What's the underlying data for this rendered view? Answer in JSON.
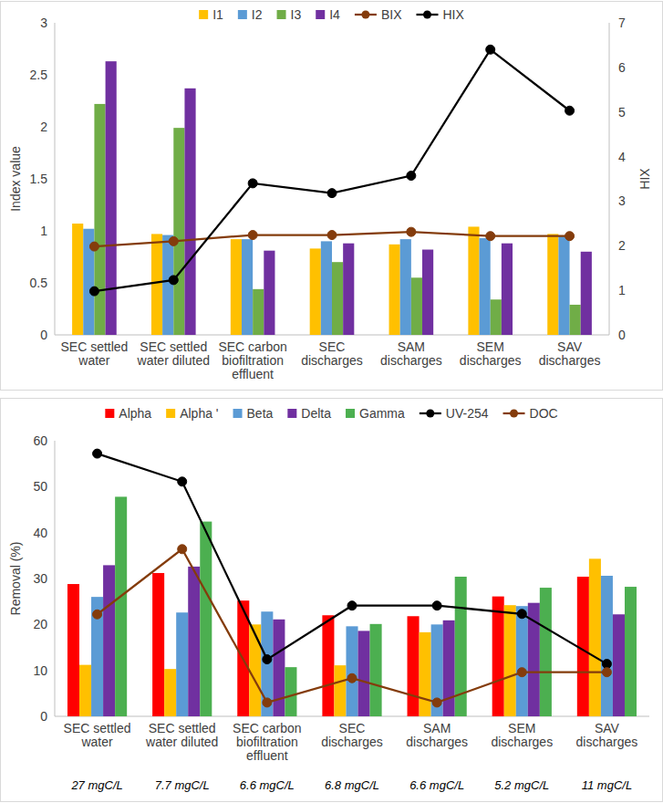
{
  "chart_data": [
    {
      "type": "bar",
      "ylabel": "Index value",
      "y2label": "HIX",
      "categories": [
        "SEC settled water",
        "SEC settled water diluted",
        "SEC carbon biofiltration effluent",
        "SEC discharges",
        "SAM discharges",
        "SEM discharges",
        "SAV discharges"
      ],
      "series": [
        {
          "name": "I1",
          "type": "bar",
          "color": "#ffc000",
          "values": [
            1.07,
            0.97,
            0.92,
            0.83,
            0.87,
            1.04,
            0.97
          ]
        },
        {
          "name": "I2",
          "type": "bar",
          "color": "#5b9bd5",
          "values": [
            1.02,
            0.96,
            0.92,
            0.9,
            0.92,
            0.93,
            0.95
          ]
        },
        {
          "name": "I3",
          "type": "bar",
          "color": "#70ad47",
          "values": [
            2.22,
            1.99,
            0.44,
            0.7,
            0.55,
            0.34,
            0.29
          ]
        },
        {
          "name": "I4",
          "type": "bar",
          "color": "#7030a0",
          "values": [
            2.63,
            2.37,
            0.81,
            0.88,
            0.82,
            0.88,
            0.8
          ]
        },
        {
          "name": "BIX",
          "type": "line",
          "color": "#843c0c",
          "marker": "circle",
          "values": [
            0.85,
            0.9,
            0.96,
            0.96,
            0.99,
            0.95,
            0.95
          ]
        },
        {
          "name": "HIX",
          "type": "line",
          "axis": "y2",
          "color": "#000000",
          "marker": "circle",
          "values": [
            0.98,
            1.23,
            3.4,
            3.18,
            3.57,
            6.4,
            5.03
          ]
        }
      ],
      "ylim": [
        0,
        3
      ],
      "yticks": [
        0,
        0.5,
        1,
        1.5,
        2,
        2.5,
        3
      ],
      "y2lim": [
        0,
        7
      ],
      "y2ticks": [
        0,
        1,
        2,
        3,
        4,
        5,
        6,
        7
      ],
      "grid": false,
      "legend": "top"
    },
    {
      "type": "bar",
      "ylabel": "Removal (%)",
      "categories": [
        "SEC settled water",
        "SEC settled water diluted",
        "SEC carbon biofiltration effluent",
        "SEC discharges",
        "SAM discharges",
        "SEM discharges",
        "SAV discharges"
      ],
      "annotations": [
        "27 mgC/L",
        "7.7 mgC/L",
        "6.6 mgC/L",
        "6.8 mgC/L",
        "6.6 mgC/L",
        "5.2 mgC/L",
        "11 mgC/L"
      ],
      "series": [
        {
          "name": "Alpha",
          "type": "bar",
          "color": "#ff0000",
          "values": [
            28.8,
            31.2,
            25.2,
            22.0,
            21.8,
            26.1,
            30.4
          ]
        },
        {
          "name": "Alpha '",
          "type": "bar",
          "color": "#ffc000",
          "values": [
            11.2,
            10.3,
            20.0,
            11.1,
            18.3,
            24.2,
            34.3
          ]
        },
        {
          "name": "Beta",
          "type": "bar",
          "color": "#5b9bd5",
          "values": [
            26.0,
            22.6,
            22.8,
            19.6,
            20.0,
            24.0,
            30.6
          ]
        },
        {
          "name": "Delta",
          "type": "bar",
          "color": "#7030a0",
          "values": [
            32.9,
            32.6,
            21.1,
            18.6,
            20.9,
            24.7,
            22.2
          ]
        },
        {
          "name": "Gamma",
          "type": "bar",
          "color": "#4caf50",
          "values": [
            47.8,
            42.4,
            10.7,
            20.1,
            30.4,
            28.0,
            28.2
          ]
        },
        {
          "name": "UV-254",
          "type": "line",
          "color": "#000000",
          "marker": "circle",
          "values": [
            57.2,
            51.1,
            12.4,
            24.1,
            24.1,
            22.3,
            11.4
          ]
        },
        {
          "name": "DOC",
          "type": "line",
          "color": "#843c0c",
          "marker": "circle",
          "values": [
            22.2,
            36.4,
            3.0,
            8.3,
            3.0,
            9.6,
            9.6
          ]
        }
      ],
      "ylim": [
        0,
        60
      ],
      "yticks": [
        0,
        10,
        20,
        30,
        40,
        50,
        60
      ],
      "grid": false,
      "legend": "top"
    }
  ]
}
